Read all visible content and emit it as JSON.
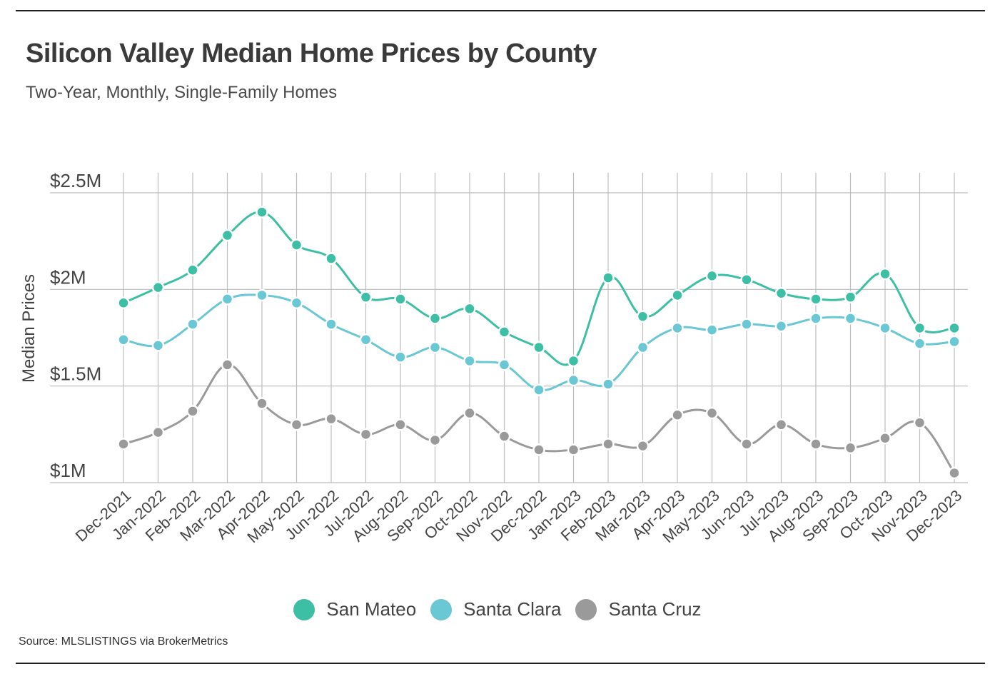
{
  "header": {
    "title": "Silicon Valley Median Home Prices by County",
    "subtitle": "Two-Year, Monthly, Single-Family Homes"
  },
  "footer": {
    "source": "Source:  MLSLISTINGS via BrokerMetrics"
  },
  "colors": {
    "san_mateo": "#3dbfa6",
    "santa_clara": "#6ac7d4",
    "santa_cruz": "#9a9a9a",
    "grid": "#bdbdbd"
  },
  "chart_data": {
    "type": "line",
    "title": "Silicon Valley Median Home Prices by County",
    "subtitle": "Two-Year, Monthly, Single-Family Homes",
    "xlabel": "",
    "ylabel": "Median Prices",
    "ylim": [
      1000000,
      2500000
    ],
    "yticks": [
      1000000,
      1500000,
      2000000,
      2500000
    ],
    "ytick_labels": [
      "$1M",
      "$1.5M",
      "$2M",
      "$2.5M"
    ],
    "grid": true,
    "legend_position": "bottom-center",
    "categories": [
      "Dec-2021",
      "Jan-2022",
      "Feb-2022",
      "Mar-2022",
      "Apr-2022",
      "May-2022",
      "Jun-2022",
      "Jul-2022",
      "Aug-2022",
      "Sep-2022",
      "Oct-2022",
      "Nov-2022",
      "Dec-2022",
      "Jan-2023",
      "Feb-2023",
      "Mar-2023",
      "Apr-2023",
      "May-2023",
      "Jun-2023",
      "Jul-2023",
      "Aug-2023",
      "Sep-2023",
      "Oct-2023",
      "Nov-2023",
      "Dec-2023"
    ],
    "series": [
      {
        "name": "San Mateo",
        "color": "#3dbfa6",
        "values": [
          1930000,
          2010000,
          2100000,
          2280000,
          2400000,
          2230000,
          2160000,
          1960000,
          1950000,
          1850000,
          1900000,
          1780000,
          1700000,
          1630000,
          2060000,
          1860000,
          1970000,
          2070000,
          2050000,
          1980000,
          1950000,
          1960000,
          2080000,
          1800000,
          1800000
        ]
      },
      {
        "name": "Santa Clara",
        "color": "#6ac7d4",
        "values": [
          1740000,
          1710000,
          1820000,
          1950000,
          1970000,
          1930000,
          1820000,
          1740000,
          1650000,
          1700000,
          1630000,
          1610000,
          1480000,
          1530000,
          1510000,
          1700000,
          1800000,
          1790000,
          1820000,
          1810000,
          1850000,
          1850000,
          1800000,
          1720000,
          1730000
        ]
      },
      {
        "name": "Santa Cruz",
        "color": "#9a9a9a",
        "values": [
          1200000,
          1260000,
          1370000,
          1610000,
          1410000,
          1300000,
          1330000,
          1250000,
          1300000,
          1220000,
          1360000,
          1240000,
          1170000,
          1170000,
          1200000,
          1190000,
          1350000,
          1360000,
          1200000,
          1300000,
          1200000,
          1180000,
          1230000,
          1310000,
          1050000
        ]
      }
    ]
  }
}
